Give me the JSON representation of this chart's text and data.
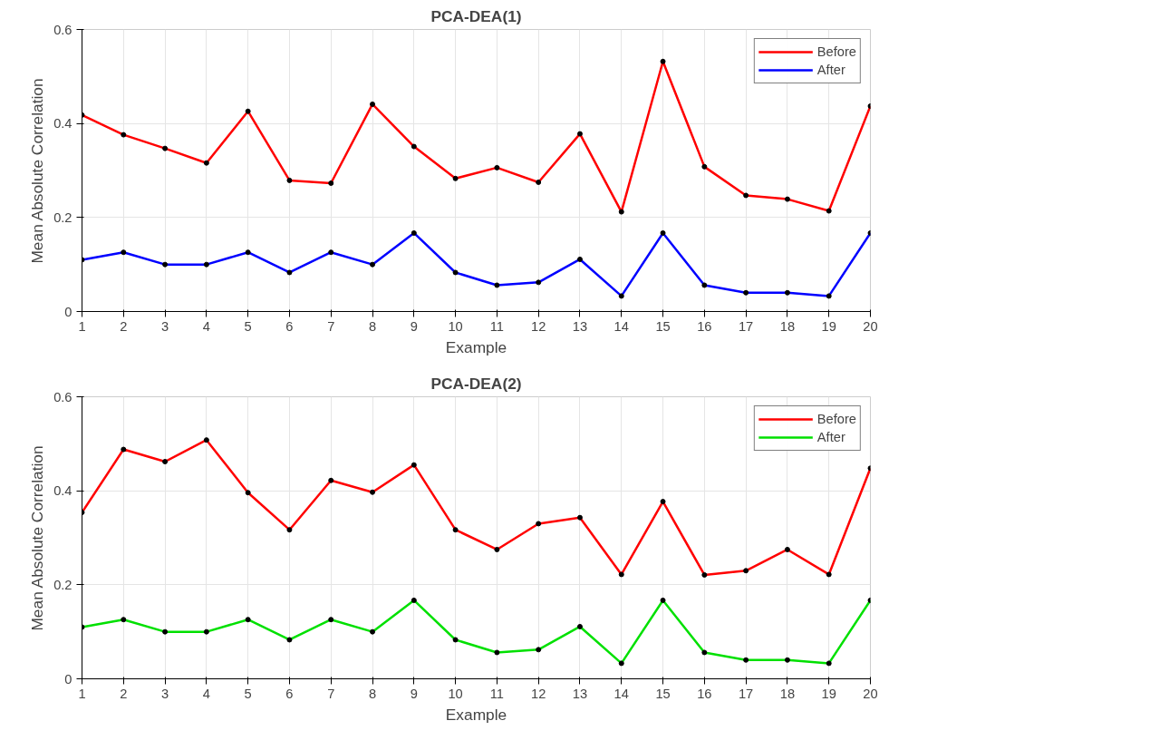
{
  "chart_data": [
    {
      "type": "line",
      "title": "PCA-DEA(1)",
      "xlabel": "Example",
      "ylabel": "Mean Absolute Correlation",
      "x": [
        1,
        2,
        3,
        4,
        5,
        6,
        7,
        8,
        9,
        10,
        11,
        12,
        13,
        14,
        15,
        16,
        17,
        18,
        19,
        20
      ],
      "series": [
        {
          "name": "Before",
          "color": "#ff0000",
          "values": [
            0.418,
            0.376,
            0.347,
            0.316,
            0.426,
            0.279,
            0.273,
            0.441,
            0.351,
            0.283,
            0.306,
            0.275,
            0.378,
            0.212,
            0.532,
            0.308,
            0.247,
            0.239,
            0.214,
            0.437
          ]
        },
        {
          "name": "After",
          "color": "#0000ff",
          "values": [
            0.11,
            0.126,
            0.1,
            0.1,
            0.126,
            0.083,
            0.126,
            0.1,
            0.167,
            0.083,
            0.056,
            0.062,
            0.111,
            0.033,
            0.167,
            0.056,
            0.04,
            0.04,
            0.033,
            0.167
          ]
        }
      ],
      "xlim": [
        1,
        20
      ],
      "xticks": [
        1,
        2,
        3,
        4,
        5,
        6,
        7,
        8,
        9,
        10,
        11,
        12,
        13,
        14,
        15,
        16,
        17,
        18,
        19,
        20
      ],
      "ylim": [
        0,
        0.6
      ],
      "yticks": [
        0,
        0.2,
        0.4,
        0.6
      ],
      "grid": true,
      "legend": "top right",
      "marker": "circle",
      "line_style": "solid"
    },
    {
      "type": "line",
      "title": "PCA-DEA(2)",
      "xlabel": "Example",
      "ylabel": "Mean Absolute Correlation",
      "x": [
        1,
        2,
        3,
        4,
        5,
        6,
        7,
        8,
        9,
        10,
        11,
        12,
        13,
        14,
        15,
        16,
        17,
        18,
        19,
        20
      ],
      "series": [
        {
          "name": "Before",
          "color": "#ff0000",
          "values": [
            0.354,
            0.488,
            0.462,
            0.508,
            0.396,
            0.317,
            0.422,
            0.397,
            0.455,
            0.317,
            0.275,
            0.33,
            0.343,
            0.222,
            0.377,
            0.221,
            0.23,
            0.275,
            0.222,
            0.448
          ]
        },
        {
          "name": "After",
          "color": "#00e000",
          "values": [
            0.11,
            0.126,
            0.1,
            0.1,
            0.126,
            0.083,
            0.126,
            0.1,
            0.167,
            0.083,
            0.056,
            0.062,
            0.111,
            0.033,
            0.167,
            0.056,
            0.04,
            0.04,
            0.033,
            0.167
          ]
        }
      ],
      "xlim": [
        1,
        20
      ],
      "xticks": [
        1,
        2,
        3,
        4,
        5,
        6,
        7,
        8,
        9,
        10,
        11,
        12,
        13,
        14,
        15,
        16,
        17,
        18,
        19,
        20
      ],
      "ylim": [
        0,
        0.6
      ],
      "yticks": [
        0,
        0.2,
        0.4,
        0.6
      ],
      "grid": true,
      "legend": "top right",
      "marker": "circle",
      "line_style": "solid"
    }
  ]
}
